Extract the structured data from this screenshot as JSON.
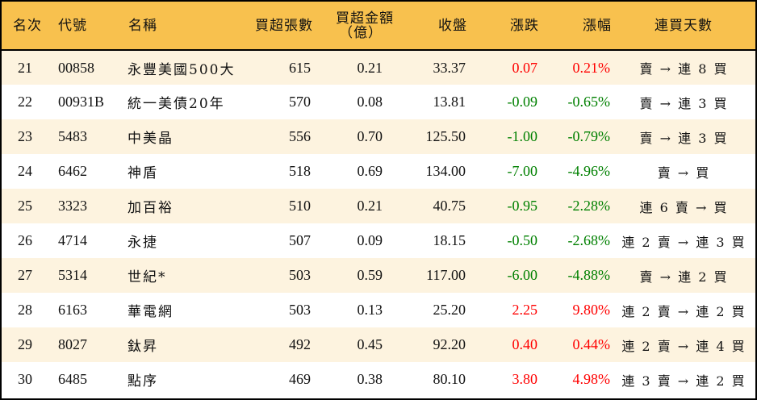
{
  "table": {
    "headers": {
      "rank": "名次",
      "code": "代號",
      "name": "名稱",
      "net_buy_volume": "買超張數",
      "net_buy_amount_line1": "買超金額",
      "net_buy_amount_line2": "（億）",
      "close": "收盤",
      "change": "漲跌",
      "change_pct": "漲幅",
      "buy_streak": "連買天數"
    },
    "colors": {
      "header_bg": "#F8C14E",
      "odd_row_bg": "#FDF3DF",
      "even_row_bg": "#FFFFFF",
      "up": "#FF0000",
      "down": "#008000",
      "border": "#000000"
    },
    "rows": [
      {
        "rank": "21",
        "code": "00858",
        "name": "永豐美國500大",
        "volume": "615",
        "amount": "0.21",
        "close": "33.37",
        "change": "0.07",
        "change_pct": "0.21%",
        "streak": "賣 → 連 8 買",
        "direction": "up"
      },
      {
        "rank": "22",
        "code": "00931B",
        "name": "統一美債20年",
        "volume": "570",
        "amount": "0.08",
        "close": "13.81",
        "change": "-0.09",
        "change_pct": "-0.65%",
        "streak": "賣 → 連 3 買",
        "direction": "down"
      },
      {
        "rank": "23",
        "code": "5483",
        "name": "中美晶",
        "volume": "556",
        "amount": "0.70",
        "close": "125.50",
        "change": "-1.00",
        "change_pct": "-0.79%",
        "streak": "賣 → 連 3 買",
        "direction": "down"
      },
      {
        "rank": "24",
        "code": "6462",
        "name": "神盾",
        "volume": "518",
        "amount": "0.69",
        "close": "134.00",
        "change": "-7.00",
        "change_pct": "-4.96%",
        "streak": "賣 → 買",
        "direction": "down"
      },
      {
        "rank": "25",
        "code": "3323",
        "name": "加百裕",
        "volume": "510",
        "amount": "0.21",
        "close": "40.75",
        "change": "-0.95",
        "change_pct": "-2.28%",
        "streak": "連 6 賣 → 買",
        "direction": "down"
      },
      {
        "rank": "26",
        "code": "4714",
        "name": "永捷",
        "volume": "507",
        "amount": "0.09",
        "close": "18.15",
        "change": "-0.50",
        "change_pct": "-2.68%",
        "streak": "連 2 賣 → 連 3 買",
        "direction": "down"
      },
      {
        "rank": "27",
        "code": "5314",
        "name": "世紀*",
        "volume": "503",
        "amount": "0.59",
        "close": "117.00",
        "change": "-6.00",
        "change_pct": "-4.88%",
        "streak": "賣 → 連 2 買",
        "direction": "down"
      },
      {
        "rank": "28",
        "code": "6163",
        "name": "華電網",
        "volume": "503",
        "amount": "0.13",
        "close": "25.20",
        "change": "2.25",
        "change_pct": "9.80%",
        "streak": "連 2 賣 → 連 2 買",
        "direction": "up"
      },
      {
        "rank": "29",
        "code": "8027",
        "name": "鈦昇",
        "volume": "492",
        "amount": "0.45",
        "close": "92.20",
        "change": "0.40",
        "change_pct": "0.44%",
        "streak": "連 2 賣 → 連 4 買",
        "direction": "up"
      },
      {
        "rank": "30",
        "code": "6485",
        "name": "點序",
        "volume": "469",
        "amount": "0.38",
        "close": "80.10",
        "change": "3.80",
        "change_pct": "4.98%",
        "streak": "連 3 賣 → 連 2 買",
        "direction": "up"
      }
    ]
  }
}
